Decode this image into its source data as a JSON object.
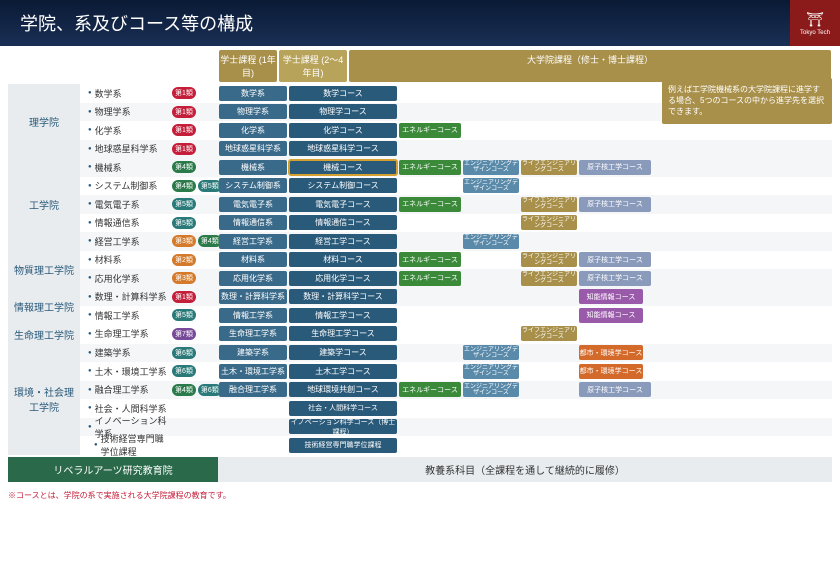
{
  "title": "学院、系及びコース等の構成",
  "logo": "Tokyo Tech",
  "col_headers": {
    "y1": "学士課程\n(1年目)",
    "y2": "学士課程\n(2〜4年目)",
    "grad": "大学院課程（修士・博士課程）"
  },
  "callout": "例えば工学院機械系の大学院課程に進学する場合、5つのコースの中から進学先を選択できます。",
  "colors": {
    "badge_r": "#c41e3a",
    "badge_g": "#2a7a4a",
    "badge_o": "#d47a2a",
    "badge_p": "#7a4a9a",
    "badge_t": "#2a7a7a",
    "dept": "#3a6a8a",
    "course": "#2a5a7a",
    "energy": "#3a8a3a",
    "eng": "#5a8aaa",
    "life": "#a8904a",
    "nuc": "#8a9abb",
    "ai": "#9a5aaa",
    "urban": "#d46a2a",
    "school_bg": "#e8ecef",
    "header_gold": "#a8904a"
  },
  "badge_labels": {
    "1": "第1類",
    "2": "第2類",
    "3": "第3類",
    "4": "第4類",
    "5": "第5類",
    "6": "第6類",
    "7": "第7類"
  },
  "extra": {
    "energy": "エネルギーコース",
    "eng": "エンジニアリングデザインコース",
    "life": "ライフエンジニアリングコース",
    "nuc": "原子核工学コース",
    "ai": "知能情報コース",
    "urban": "都市・環境学コース"
  },
  "schools": [
    {
      "name": "理学院",
      "rows": [
        {
          "dept": "数学系",
          "badges": [
            {
              "t": "1",
              "c": "r"
            }
          ],
          "d2": "数学系",
          "course": "数学コース"
        },
        {
          "dept": "物理学系",
          "badges": [
            {
              "t": "1",
              "c": "r"
            }
          ],
          "d2": "物理学系",
          "course": "物理学コース"
        },
        {
          "dept": "化学系",
          "badges": [
            {
              "t": "1",
              "c": "r"
            }
          ],
          "d2": "化学系",
          "course": "化学コース",
          "energy": true
        },
        {
          "dept": "地球惑星科学系",
          "badges": [
            {
              "t": "1",
              "c": "r"
            }
          ],
          "d2": "地球惑星科学系",
          "course": "地球惑星科学コース"
        }
      ]
    },
    {
      "name": "工学院",
      "rows": [
        {
          "dept": "機械系",
          "badges": [
            {
              "t": "4",
              "c": "g"
            }
          ],
          "d2": "機械系",
          "course": "機械コース",
          "hl": true,
          "energy": true,
          "eng": true,
          "life": true,
          "nuc": true
        },
        {
          "dept": "システム制御系",
          "badges": [
            {
              "t": "4",
              "c": "g"
            },
            {
              "t": "5",
              "c": "t"
            }
          ],
          "d2": "システム制御系",
          "course": "システム制御コース",
          "eng": true
        },
        {
          "dept": "電気電子系",
          "badges": [
            {
              "t": "5",
              "c": "t"
            }
          ],
          "d2": "電気電子系",
          "course": "電気電子コース",
          "energy": true,
          "life": true,
          "nuc": true
        },
        {
          "dept": "情報通信系",
          "badges": [
            {
              "t": "5",
              "c": "t"
            }
          ],
          "d2": "情報通信系",
          "course": "情報通信コース",
          "life": true
        },
        {
          "dept": "経営工学系",
          "badges": [
            {
              "t": "3",
              "c": "o"
            },
            {
              "t": "4",
              "c": "g"
            }
          ],
          "d2": "経営工学系",
          "course": "経営工学コース",
          "eng": true
        }
      ]
    },
    {
      "name": "物質理工学院",
      "rows": [
        {
          "dept": "材料系",
          "badges": [
            {
              "t": "2",
              "c": "o"
            }
          ],
          "d2": "材料系",
          "course": "材料コース",
          "energy": true,
          "life": true,
          "nuc": true
        },
        {
          "dept": "応用化学系",
          "badges": [
            {
              "t": "3",
              "c": "o"
            }
          ],
          "d2": "応用化学系",
          "course": "応用化学コース",
          "energy": true,
          "life": true,
          "nuc": true
        }
      ]
    },
    {
      "name": "情報理工学院",
      "rows": [
        {
          "dept": "数理・計算科学系",
          "badges": [
            {
              "t": "1",
              "c": "r"
            }
          ],
          "d2": "数理・計算科学系",
          "course": "数理・計算科学コース",
          "ai": true
        },
        {
          "dept": "情報工学系",
          "badges": [
            {
              "t": "5",
              "c": "t"
            }
          ],
          "d2": "情報工学系",
          "course": "情報工学コース",
          "ai": true
        }
      ]
    },
    {
      "name": "生命理工学院",
      "rows": [
        {
          "dept": "生命理工学系",
          "badges": [
            {
              "t": "7",
              "c": "p"
            }
          ],
          "d2": "生命理工学系",
          "course": "生命理工学コース",
          "life": true
        }
      ]
    },
    {
      "name": "環境・社会理工学院",
      "rows": [
        {
          "dept": "建築学系",
          "badges": [
            {
              "t": "6",
              "c": "t"
            }
          ],
          "d2": "建築学系",
          "course": "建築学コース",
          "eng": true,
          "urban": true
        },
        {
          "dept": "土木・環境工学系",
          "badges": [
            {
              "t": "6",
              "c": "t"
            }
          ],
          "d2": "土木・環境工学系",
          "course": "土木工学コース",
          "eng": true,
          "urban": true
        },
        {
          "dept": "融合理工学系",
          "badges": [
            {
              "t": "4",
              "c": "g"
            },
            {
              "t": "6",
              "c": "t"
            }
          ],
          "d2": "融合理工学系",
          "course": "地球環境共創コース",
          "energy": true,
          "eng": true,
          "nuc": true
        },
        {
          "dept": "社会・人間科学系",
          "badges": [],
          "course": "社会・人間科学コース"
        },
        {
          "dept": "イノベーション科学系",
          "badges": [],
          "course": "イノベーション科学コース（博士課程）"
        },
        {
          "dept": "技術経営専門職学位課程",
          "badges": [],
          "course": "技術経営専門職学位課程",
          "nodot": true
        }
      ]
    }
  ],
  "liberal": {
    "l": "リベラルアーツ研究教育院",
    "r": "教養系科目（全課程を通して継続的に履修）"
  },
  "footnote": "※コースとは、学院の系で実施される大学院課程の教育です。"
}
